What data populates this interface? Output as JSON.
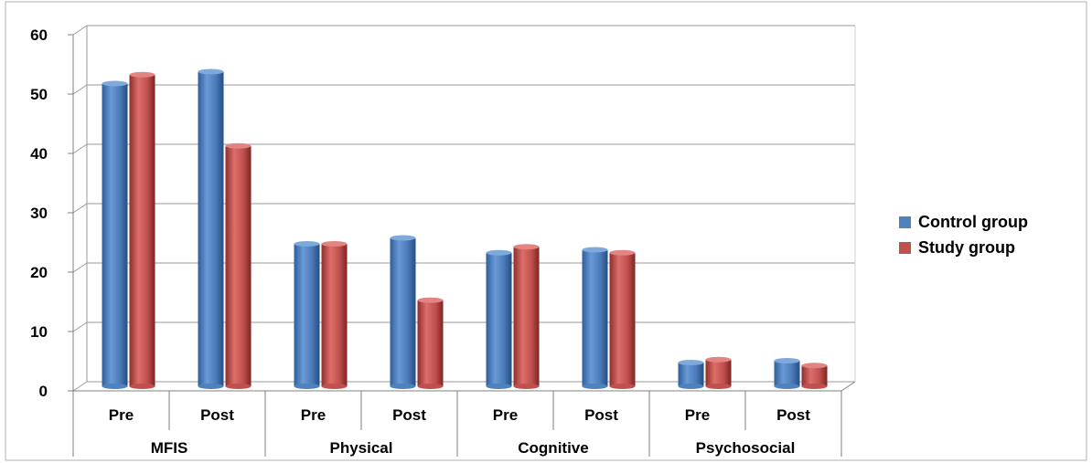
{
  "chart_data": {
    "type": "bar",
    "groups": [
      "MFIS",
      "Physical",
      "Cognitive",
      "Psychosocial"
    ],
    "categories": [
      "Pre",
      "Post",
      "Pre",
      "Post",
      "Pre",
      "Post",
      "Pre",
      "Post"
    ],
    "series": [
      {
        "name": "Control group",
        "color": "#4f81bd",
        "values": [
          51,
          53,
          24,
          25,
          22.5,
          23,
          4,
          4.3
        ]
      },
      {
        "name": "Study group",
        "color": "#c0504d",
        "values": [
          52.5,
          40.5,
          24,
          14.5,
          23.5,
          22.5,
          4.5,
          3.5
        ]
      }
    ],
    "ylim": [
      0,
      60
    ],
    "yticks": [
      0,
      10,
      20,
      30,
      40,
      50,
      60
    ],
    "grid": true,
    "legend_position": "right"
  }
}
